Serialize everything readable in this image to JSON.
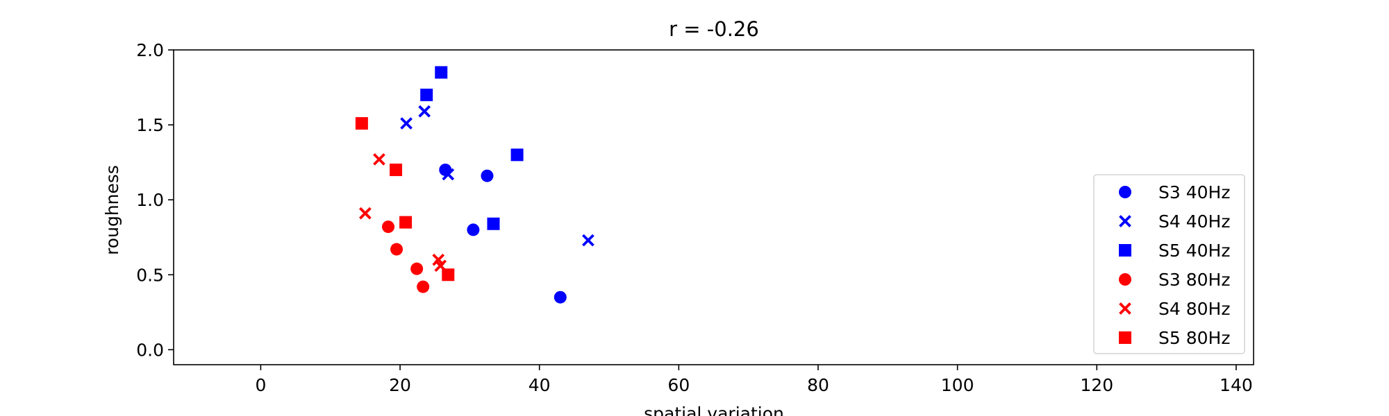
{
  "chart_data": {
    "type": "scatter",
    "title": "r = -0.26",
    "xlabel": "spatial variation",
    "ylabel": "roughness",
    "xlim": [
      -12.5,
      142.5
    ],
    "ylim": [
      -0.1,
      2.0
    ],
    "xticks": [
      0,
      20,
      40,
      60,
      80,
      100,
      120,
      140
    ],
    "yticks": [
      0.0,
      0.5,
      1.0,
      1.5,
      2.0
    ],
    "xtick_labels": [
      "0",
      "20",
      "40",
      "60",
      "80",
      "100",
      "120",
      "140"
    ],
    "ytick_labels": [
      "0.0",
      "0.5",
      "1.0",
      "1.5",
      "2.0"
    ],
    "grid": false,
    "legend_position": "lower-right",
    "series": [
      {
        "name": "S3 40Hz",
        "marker": "circle",
        "color": "#0000ff",
        "points": [
          [
            26.5,
            1.2
          ],
          [
            32.5,
            1.16
          ],
          [
            30.5,
            0.8
          ],
          [
            43.0,
            0.35
          ]
        ]
      },
      {
        "name": "S4 40Hz",
        "marker": "x",
        "color": "#0000ff",
        "points": [
          [
            20.9,
            1.51
          ],
          [
            23.5,
            1.59
          ],
          [
            26.9,
            1.17
          ],
          [
            47.0,
            0.73
          ]
        ]
      },
      {
        "name": "S5 40Hz",
        "marker": "square",
        "color": "#0000ff",
        "points": [
          [
            25.9,
            1.85
          ],
          [
            23.8,
            1.7
          ],
          [
            36.8,
            1.3
          ],
          [
            33.4,
            0.84
          ]
        ]
      },
      {
        "name": "S3 80Hz",
        "marker": "circle",
        "color": "#ff0000",
        "points": [
          [
            18.3,
            0.82
          ],
          [
            19.5,
            0.67
          ],
          [
            22.4,
            0.54
          ],
          [
            23.3,
            0.42
          ]
        ]
      },
      {
        "name": "S4 80Hz",
        "marker": "x",
        "color": "#ff0000",
        "points": [
          [
            17.0,
            1.27
          ],
          [
            15.0,
            0.91
          ],
          [
            25.5,
            0.6
          ],
          [
            25.8,
            0.56
          ]
        ]
      },
      {
        "name": "S5 80Hz",
        "marker": "square",
        "color": "#ff0000",
        "points": [
          [
            14.5,
            1.51
          ],
          [
            19.4,
            1.2
          ],
          [
            20.8,
            0.85
          ],
          [
            26.9,
            0.5
          ]
        ]
      }
    ]
  }
}
